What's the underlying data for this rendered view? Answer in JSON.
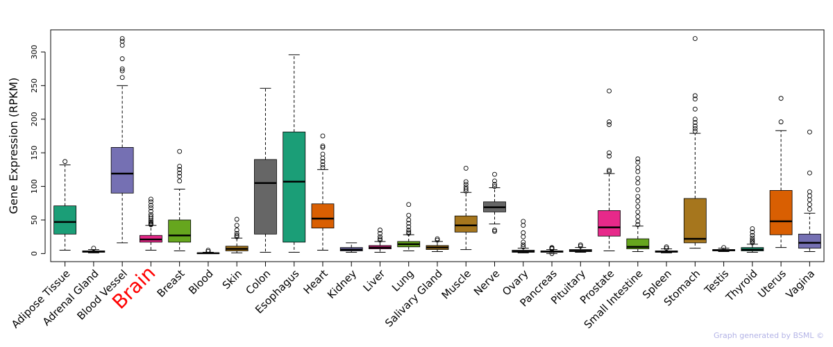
{
  "chart_data": {
    "type": "box",
    "title": "",
    "xlabel": "",
    "ylabel": "Gene Expression (RPKM)",
    "ylim": [
      -12,
      333
    ],
    "yticks": [
      0,
      50,
      100,
      150,
      200,
      250,
      300
    ],
    "highlight_category": "Brain",
    "highlight_color": "#ff0000",
    "boxes": [
      {
        "label": "Adipose Tissue",
        "color": "#1b9e77",
        "whisker_low": 5,
        "q1": 29,
        "median": 47,
        "q3": 71,
        "whisker_high": 132,
        "outliers": [
          137
        ]
      },
      {
        "label": "Adrenal Gland",
        "color": "#666666",
        "whisker_low": 1,
        "q1": 2,
        "median": 3,
        "q3": 4,
        "whisker_high": 6,
        "outliers": [
          8
        ]
      },
      {
        "label": "Blood Vessel",
        "color": "#7570b3",
        "whisker_low": 16,
        "q1": 90,
        "median": 119,
        "q3": 158,
        "whisker_high": 250,
        "outliers": [
          262,
          272,
          275,
          290,
          310,
          316,
          320
        ]
      },
      {
        "label": "Brain",
        "color": "#e7298a",
        "whisker_low": 5,
        "q1": 17,
        "median": 21,
        "q3": 27,
        "whisker_high": 42,
        "outliers": [
          43,
          44,
          45,
          47,
          49,
          52,
          55,
          58,
          63,
          68,
          72,
          77,
          81
        ]
      },
      {
        "label": "Breast",
        "color": "#66a61e",
        "whisker_low": 4,
        "q1": 17,
        "median": 27,
        "q3": 50,
        "whisker_high": 96,
        "outliers": [
          108,
          115,
          120,
          125,
          130,
          152
        ]
      },
      {
        "label": "Blood",
        "color": "#666666",
        "whisker_low": 0,
        "q1": 0,
        "median": 0.5,
        "q3": 1,
        "whisker_high": 2,
        "outliers": [
          3,
          5
        ]
      },
      {
        "label": "Skin",
        "color": "#a6761d",
        "whisker_low": 1,
        "q1": 4,
        "median": 7,
        "q3": 11,
        "whisker_high": 23,
        "outliers": [
          25,
          27,
          30,
          35,
          42,
          51
        ]
      },
      {
        "label": "Colon",
        "color": "#666666",
        "whisker_low": 2,
        "q1": 29,
        "median": 105,
        "q3": 140,
        "whisker_high": 246,
        "outliers": []
      },
      {
        "label": "Esophagus",
        "color": "#1b9e77",
        "whisker_low": 2,
        "q1": 17,
        "median": 107,
        "q3": 181,
        "whisker_high": 296,
        "outliers": []
      },
      {
        "label": "Heart",
        "color": "#d95f02",
        "whisker_low": 5,
        "q1": 38,
        "median": 52,
        "q3": 74,
        "whisker_high": 125,
        "outliers": [
          128,
          132,
          137,
          142,
          148,
          158,
          160,
          175
        ]
      },
      {
        "label": "Kidney",
        "color": "#7570b3",
        "whisker_low": 2,
        "q1": 4,
        "median": 6,
        "q3": 9,
        "whisker_high": 16,
        "outliers": []
      },
      {
        "label": "Liver",
        "color": "#e7298a",
        "whisker_low": 2,
        "q1": 7,
        "median": 9,
        "q3": 12,
        "whisker_high": 18,
        "outliers": [
          20,
          22,
          25,
          30,
          35
        ]
      },
      {
        "label": "Lung",
        "color": "#66a61e",
        "whisker_low": 4,
        "q1": 10,
        "median": 14,
        "q3": 18,
        "whisker_high": 28,
        "outliers": [
          30,
          32,
          35,
          40,
          45,
          50,
          57,
          73
        ]
      },
      {
        "label": "Salivary Gland",
        "color": "#a6761d",
        "whisker_low": 3,
        "q1": 6,
        "median": 9,
        "q3": 12,
        "whisker_high": 18,
        "outliers": [
          20,
          22
        ]
      },
      {
        "label": "Muscle",
        "color": "#a6761d",
        "whisker_low": 6,
        "q1": 32,
        "median": 42,
        "q3": 56,
        "whisker_high": 91,
        "outliers": [
          93,
          96,
          99,
          103,
          107,
          127
        ]
      },
      {
        "label": "Nerve",
        "color": "#666666",
        "whisker_low": 44,
        "q1": 62,
        "median": 69,
        "q3": 77,
        "whisker_high": 98,
        "outliers": [
          100,
          103,
          108,
          118,
          35,
          33
        ]
      },
      {
        "label": "Ovary",
        "color": "#666666",
        "whisker_low": 1,
        "q1": 2,
        "median": 3,
        "q3": 5,
        "whisker_high": 8,
        "outliers": [
          10,
          13,
          17,
          25,
          31,
          42,
          48
        ]
      },
      {
        "label": "Pancreas",
        "color": "#666666",
        "whisker_low": 0,
        "q1": 2,
        "median": 3,
        "q3": 4,
        "whisker_high": 6,
        "outliers": [
          7,
          8,
          9,
          0
        ]
      },
      {
        "label": "Pituitary",
        "color": "#666666",
        "whisker_low": 2,
        "q1": 3,
        "median": 4,
        "q3": 6,
        "whisker_high": 9,
        "outliers": [
          11,
          13
        ]
      },
      {
        "label": "Prostate",
        "color": "#e7298a",
        "whisker_low": 4,
        "q1": 26,
        "median": 39,
        "q3": 64,
        "whisker_high": 119,
        "outliers": [
          122,
          124,
          145,
          150,
          192,
          196,
          242
        ]
      },
      {
        "label": "Small Intestine",
        "color": "#66a61e",
        "whisker_low": 3,
        "q1": 7,
        "median": 10,
        "q3": 22,
        "whisker_high": 41,
        "outliers": [
          43,
          48,
          55,
          62,
          70,
          78,
          85,
          95,
          105,
          112,
          122,
          128,
          136,
          141
        ]
      },
      {
        "label": "Spleen",
        "color": "#666666",
        "whisker_low": 1,
        "q1": 2,
        "median": 3,
        "q3": 4,
        "whisker_high": 7,
        "outliers": [
          8,
          10
        ]
      },
      {
        "label": "Stomach",
        "color": "#a6761d",
        "whisker_low": 8,
        "q1": 16,
        "median": 22,
        "q3": 82,
        "whisker_high": 179,
        "outliers": [
          182,
          186,
          190,
          195,
          200,
          215,
          230,
          235,
          320
        ]
      },
      {
        "label": "Testis",
        "color": "#666666",
        "whisker_low": 3,
        "q1": 4,
        "median": 5,
        "q3": 6,
        "whisker_high": 8,
        "outliers": [
          9
        ]
      },
      {
        "label": "Thyroid",
        "color": "#1b9e77",
        "whisker_low": 2,
        "q1": 4,
        "median": 6,
        "q3": 9,
        "whisker_high": 14,
        "outliers": [
          16,
          18,
          20,
          23,
          27,
          32,
          37
        ]
      },
      {
        "label": "Uterus",
        "color": "#d95f02",
        "whisker_low": 9,
        "q1": 28,
        "median": 48,
        "q3": 94,
        "whisker_high": 183,
        "outliers": [
          196,
          231
        ]
      },
      {
        "label": "Vagina",
        "color": "#7570b3",
        "whisker_low": 3,
        "q1": 8,
        "median": 16,
        "q3": 29,
        "whisker_high": 60,
        "outliers": [
          66,
          73,
          80,
          86,
          92,
          120,
          181
        ]
      }
    ]
  },
  "footer": {
    "credit": "Graph generated by BSML ©"
  }
}
